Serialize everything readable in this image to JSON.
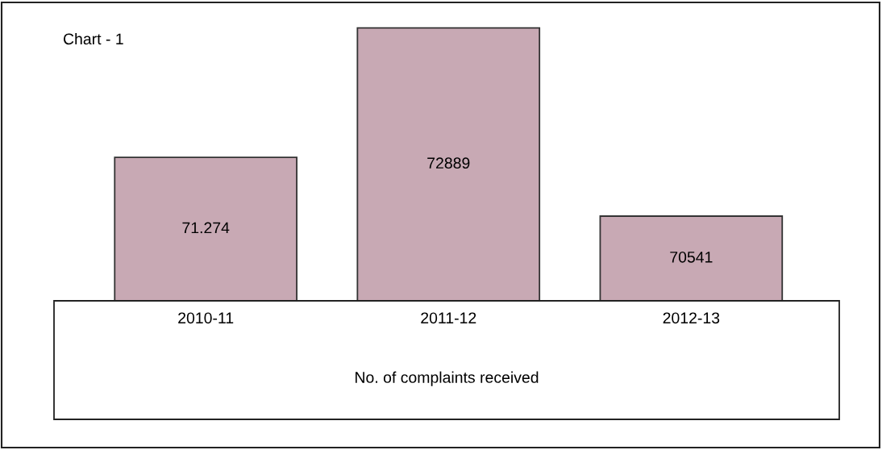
{
  "chart_data": {
    "type": "bar",
    "title": "Chart - 1",
    "xlabel": "No. of complaints received",
    "categories": [
      "2010-11",
      "2011-12",
      "2012-13"
    ],
    "values": [
      71274,
      72889,
      70541
    ],
    "value_labels": [
      "71.274",
      "72889",
      "70541"
    ],
    "color": "#c8a9b4",
    "tick_labels": "x",
    "grid": false
  }
}
